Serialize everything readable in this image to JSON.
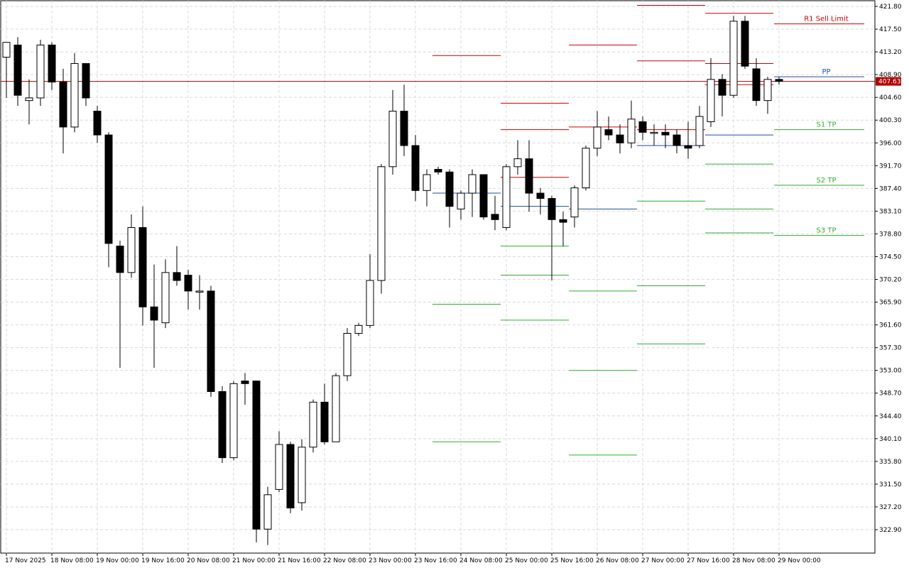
{
  "chart_data": {
    "type": "candlestick",
    "grid": true,
    "ylim": [
      319.0,
      423.5
    ],
    "y_ticks": [
      "421.80",
      "417.50",
      "413.20",
      "408.90",
      "404.60",
      "400.30",
      "396.00",
      "391.70",
      "387.40",
      "383.10",
      "378.80",
      "374.50",
      "370.20",
      "365.90",
      "361.60",
      "357.30",
      "353.00",
      "348.70",
      "344.40",
      "340.10",
      "335.80",
      "331.50",
      "327.20",
      "322.90"
    ],
    "x_ticks": [
      {
        "label": "17 Nov 2025",
        "bar": 0
      },
      {
        "label": "18 Nov 08:00",
        "bar": 4
      },
      {
        "label": "19 Nov 00:00",
        "bar": 8
      },
      {
        "label": "19 Nov 16:00",
        "bar": 12
      },
      {
        "label": "20 Nov 08:00",
        "bar": 16
      },
      {
        "label": "21 Nov 00:00",
        "bar": 20
      },
      {
        "label": "21 Nov 16:00",
        "bar": 24
      },
      {
        "label": "22 Nov 08:00",
        "bar": 28
      },
      {
        "label": "23 Nov 00:00",
        "bar": 32
      },
      {
        "label": "23 Nov 16:00",
        "bar": 36
      },
      {
        "label": "24 Nov 08:00",
        "bar": 40
      },
      {
        "label": "25 Nov 00:00",
        "bar": 44
      },
      {
        "label": "25 Nov 16:00",
        "bar": 48
      },
      {
        "label": "26 Nov 08:00",
        "bar": 52
      },
      {
        "label": "27 Nov 00:00",
        "bar": 56
      },
      {
        "label": "27 Nov 16:00",
        "bar": 60
      },
      {
        "label": "28 Nov 08:00",
        "bar": 64
      },
      {
        "label": "29 Nov 00:00",
        "bar": 68
      }
    ],
    "candles": [
      {
        "o": 412.2,
        "h": 415.0,
        "l": 404.5,
        "c": 415.0
      },
      {
        "o": 414.5,
        "h": 416.0,
        "l": 403.0,
        "c": 405.0
      },
      {
        "o": 404.0,
        "h": 408.0,
        "l": 399.5,
        "c": 404.5
      },
      {
        "o": 404.5,
        "h": 415.5,
        "l": 403.0,
        "c": 414.5
      },
      {
        "o": 414.5,
        "h": 415.0,
        "l": 406.0,
        "c": 407.5
      },
      {
        "o": 407.5,
        "h": 410.0,
        "l": 394.0,
        "c": 399.0
      },
      {
        "o": 399.0,
        "h": 413.0,
        "l": 398.0,
        "c": 411.0
      },
      {
        "o": 411.0,
        "h": 411.0,
        "l": 403.0,
        "c": 404.5
      },
      {
        "o": 402.0,
        "h": 403.0,
        "l": 396.0,
        "c": 397.5
      },
      {
        "o": 397.5,
        "h": 398.0,
        "l": 372.5,
        "c": 377.0
      },
      {
        "o": 376.5,
        "h": 377.5,
        "l": 353.5,
        "c": 371.5
      },
      {
        "o": 371.5,
        "h": 382.5,
        "l": 370.5,
        "c": 380.0
      },
      {
        "o": 380.0,
        "h": 384.0,
        "l": 361.5,
        "c": 365.0
      },
      {
        "o": 365.0,
        "h": 373.0,
        "l": 353.5,
        "c": 362.5
      },
      {
        "o": 362.0,
        "h": 374.0,
        "l": 361.0,
        "c": 371.5
      },
      {
        "o": 371.5,
        "h": 376.5,
        "l": 369.0,
        "c": 370.0
      },
      {
        "o": 371.0,
        "h": 372.0,
        "l": 364.5,
        "c": 368.0
      },
      {
        "o": 368.0,
        "h": 371.0,
        "l": 364.5,
        "c": 368.0
      },
      {
        "o": 368.0,
        "h": 369.0,
        "l": 348.0,
        "c": 349.0
      },
      {
        "o": 349.0,
        "h": 350.0,
        "l": 335.5,
        "c": 336.5
      },
      {
        "o": 336.5,
        "h": 351.0,
        "l": 336.0,
        "c": 350.5
      },
      {
        "o": 351.0,
        "h": 352.5,
        "l": 346.5,
        "c": 350.5
      },
      {
        "o": 351.0,
        "h": 351.0,
        "l": 320.5,
        "c": 323.0
      },
      {
        "o": 323.0,
        "h": 331.0,
        "l": 320.0,
        "c": 329.5
      },
      {
        "o": 330.5,
        "h": 341.5,
        "l": 330.0,
        "c": 339.0
      },
      {
        "o": 339.0,
        "h": 339.5,
        "l": 326.0,
        "c": 327.0
      },
      {
        "o": 328.0,
        "h": 340.0,
        "l": 326.5,
        "c": 338.5
      },
      {
        "o": 338.5,
        "h": 347.5,
        "l": 337.5,
        "c": 347.0
      },
      {
        "o": 347.0,
        "h": 350.5,
        "l": 339.0,
        "c": 339.5
      },
      {
        "o": 339.5,
        "h": 352.5,
        "l": 339.5,
        "c": 352.0
      },
      {
        "o": 352.0,
        "h": 361.0,
        "l": 351.0,
        "c": 360.0
      },
      {
        "o": 360.0,
        "h": 362.0,
        "l": 359.5,
        "c": 361.5
      },
      {
        "o": 361.5,
        "h": 375.0,
        "l": 361.0,
        "c": 370.0
      },
      {
        "o": 370.0,
        "h": 392.0,
        "l": 367.5,
        "c": 391.5
      },
      {
        "o": 391.5,
        "h": 406.0,
        "l": 390.0,
        "c": 402.0
      },
      {
        "o": 402.0,
        "h": 407.0,
        "l": 393.5,
        "c": 395.5
      },
      {
        "o": 395.5,
        "h": 397.5,
        "l": 385.0,
        "c": 387.0
      },
      {
        "o": 387.0,
        "h": 391.0,
        "l": 384.0,
        "c": 390.0
      },
      {
        "o": 391.0,
        "h": 391.5,
        "l": 390.0,
        "c": 390.5
      },
      {
        "o": 390.5,
        "h": 391.0,
        "l": 380.0,
        "c": 384.0
      },
      {
        "o": 383.5,
        "h": 387.0,
        "l": 381.5,
        "c": 386.5
      },
      {
        "o": 386.5,
        "h": 391.0,
        "l": 382.0,
        "c": 390.0
      },
      {
        "o": 390.0,
        "h": 390.0,
        "l": 381.5,
        "c": 382.0
      },
      {
        "o": 382.5,
        "h": 386.0,
        "l": 379.5,
        "c": 381.5
      },
      {
        "o": 380.0,
        "h": 392.0,
        "l": 379.5,
        "c": 391.5
      },
      {
        "o": 391.5,
        "h": 396.5,
        "l": 390.0,
        "c": 393.0
      },
      {
        "o": 393.0,
        "h": 396.5,
        "l": 383.0,
        "c": 386.5
      },
      {
        "o": 386.5,
        "h": 387.5,
        "l": 382.5,
        "c": 385.5
      },
      {
        "o": 385.5,
        "h": 386.0,
        "l": 370.0,
        "c": 381.5
      },
      {
        "o": 381.5,
        "h": 383.0,
        "l": 376.5,
        "c": 381.0
      },
      {
        "o": 382.0,
        "h": 388.0,
        "l": 380.0,
        "c": 387.5
      },
      {
        "o": 387.5,
        "h": 395.5,
        "l": 387.0,
        "c": 395.0
      },
      {
        "o": 395.0,
        "h": 402.0,
        "l": 393.5,
        "c": 399.0
      },
      {
        "o": 398.5,
        "h": 401.0,
        "l": 396.5,
        "c": 397.5
      },
      {
        "o": 397.5,
        "h": 399.5,
        "l": 394.0,
        "c": 396.0
      },
      {
        "o": 396.0,
        "h": 404.0,
        "l": 395.0,
        "c": 400.5
      },
      {
        "o": 400.0,
        "h": 401.0,
        "l": 396.5,
        "c": 398.0
      },
      {
        "o": 398.0,
        "h": 399.5,
        "l": 395.5,
        "c": 398.0
      },
      {
        "o": 398.0,
        "h": 399.5,
        "l": 395.0,
        "c": 397.5
      },
      {
        "o": 397.5,
        "h": 398.5,
        "l": 394.0,
        "c": 395.5
      },
      {
        "o": 395.5,
        "h": 400.0,
        "l": 393.0,
        "c": 395.0
      },
      {
        "o": 395.5,
        "h": 403.0,
        "l": 395.0,
        "c": 401.0
      },
      {
        "o": 400.0,
        "h": 412.0,
        "l": 399.0,
        "c": 408.0
      },
      {
        "o": 408.0,
        "h": 409.0,
        "l": 401.0,
        "c": 405.0
      },
      {
        "o": 405.0,
        "h": 420.0,
        "l": 404.5,
        "c": 419.0
      },
      {
        "o": 419.0,
        "h": 420.0,
        "l": 410.0,
        "c": 410.5
      },
      {
        "o": 410.0,
        "h": 412.0,
        "l": 403.0,
        "c": 404.0
      },
      {
        "o": 404.0,
        "h": 408.5,
        "l": 401.5,
        "c": 408.0
      },
      {
        "o": 408.0,
        "h": 408.5,
        "l": 407.0,
        "c": 407.63
      }
    ],
    "current_price": "407.63",
    "current_price_value": 407.63,
    "pivot_segments": [
      {
        "from_bar": 38,
        "to_bar": 44,
        "r2": 412.5,
        "pp": 386.5,
        "s1": 365.5,
        "s2": 339.5
      },
      {
        "from_bar": 44,
        "to_bar": 50,
        "r1": 403.5,
        "r3": 398.5,
        "r2": 389.5,
        "pp": 384.0,
        "s1": 376.5,
        "s2": 371.0,
        "s3": 362.5
      },
      {
        "from_bar": 50,
        "to_bar": 56,
        "r1": 414.5,
        "r2": 399.0,
        "pp": 383.5,
        "s1": 368.0,
        "s2": 353.0,
        "s3": 337.0
      },
      {
        "from_bar": 56,
        "to_bar": 62,
        "r0": 422.0,
        "r1": 411.5,
        "r2": 398.5,
        "pp": 395.5,
        "s1": 385.0,
        "s2": 369.0,
        "s3": 358.0
      },
      {
        "from_bar": 62,
        "to_bar": 68,
        "r0": 420.5,
        "r1": 411.0,
        "r2": 407.0,
        "pp": 397.5,
        "s1": 392.0,
        "s2": 383.5,
        "s3": 379.0
      }
    ],
    "levels": [
      {
        "label": "R1 Sell Limit",
        "value": 418.5,
        "color": "#cc0000"
      },
      {
        "label": "PP",
        "value": 408.5,
        "color": "#1f4e9c"
      },
      {
        "label": "S1 TP",
        "value": 398.5,
        "color": "#33aa33"
      },
      {
        "label": "S2 TP",
        "value": 388.0,
        "color": "#33aa33"
      },
      {
        "label": "S3 TP",
        "value": 378.5,
        "color": "#33aa33"
      }
    ],
    "colors": {
      "grid": "#d9d9d9",
      "bull_body": "#ffffff",
      "bear_body": "#000000",
      "outline": "#000000",
      "resistance": "#cc0000",
      "pivot": "#1f4e9c",
      "support": "#33aa33",
      "price_line": "#b00000",
      "price_badge": "#b00000"
    }
  }
}
